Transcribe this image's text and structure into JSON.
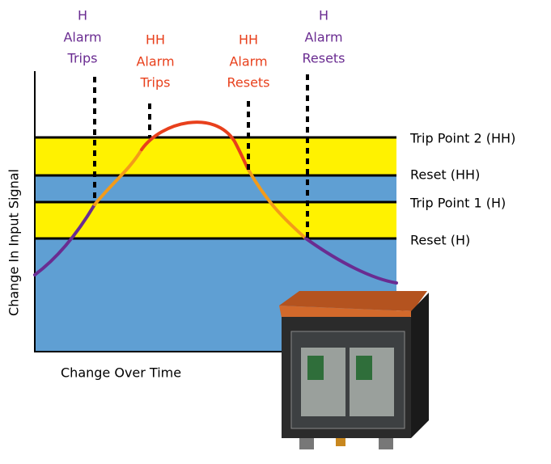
{
  "annotations": [
    {
      "lines": [
        "H",
        "Alarm",
        "Trips"
      ]
    },
    {
      "lines": [
        "HH",
        "Alarm",
        "Trips"
      ]
    },
    {
      "lines": [
        "HH",
        "Alarm",
        "Resets"
      ]
    },
    {
      "lines": [
        "H",
        "Alarm",
        "Resets"
      ]
    }
  ],
  "levels": [
    "Trip Point 2 (HH)",
    "Reset (HH)",
    "Trip Point 1 (H)",
    "Reset (H)"
  ],
  "axes": {
    "y_label": "Change In Input Signal",
    "x_label": "Change Over Time"
  }
}
